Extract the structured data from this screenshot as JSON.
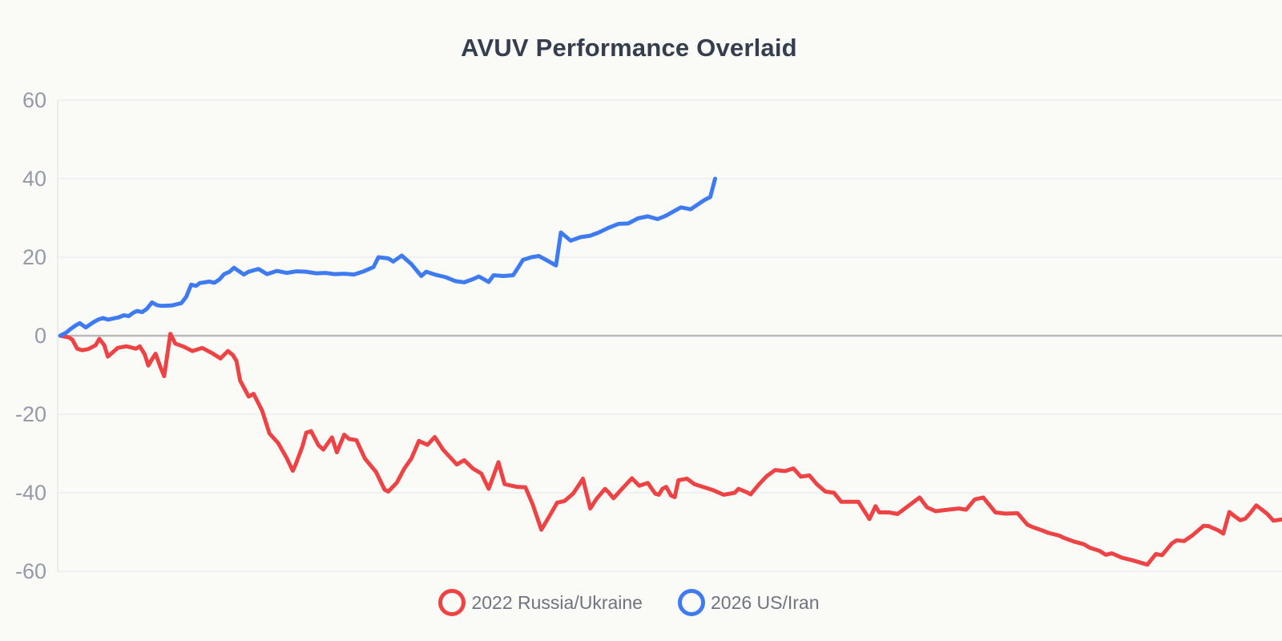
{
  "chart_data": {
    "type": "line",
    "title": "AVUV Performance Overlaid",
    "xlabel": "",
    "ylabel": "",
    "ylim": [
      -60,
      60
    ],
    "y_ticks": [
      60,
      40,
      20,
      0,
      -20,
      -40,
      -60
    ],
    "x_axis_labels": [],
    "x_encoding": "percent of plot width 0-100 (no x-axis tick labels shown)",
    "grid": "horizontal",
    "legend_position": "bottom",
    "colors": {
      "background": "#fafaf7",
      "grid_line": "#ededf1",
      "zero_line": "#b9b9bb",
      "axis_line": "#e7e7ec",
      "tick_text": "#949aa8",
      "title_text": "#343e4e",
      "legend_text": "#6f7480"
    },
    "series": [
      {
        "id": "2022-russia-ukraine",
        "name": "2022 Russia/Ukraine",
        "color": "#ee4345",
        "points": [
          [
            0.2,
            0
          ],
          [
            0.9,
            -0.4
          ],
          [
            1.2,
            -1.0
          ],
          [
            1.6,
            -3.3
          ],
          [
            2.0,
            -3.7
          ],
          [
            2.5,
            -3.4
          ],
          [
            3.1,
            -2.4
          ],
          [
            3.4,
            -0.8
          ],
          [
            3.8,
            -2.4
          ],
          [
            4.1,
            -5.3
          ],
          [
            4.5,
            -4.2
          ],
          [
            4.9,
            -3.1
          ],
          [
            5.6,
            -2.7
          ],
          [
            6.4,
            -3.3
          ],
          [
            6.7,
            -2.7
          ],
          [
            7.1,
            -4.7
          ],
          [
            7.4,
            -7.6
          ],
          [
            7.7,
            -6.0
          ],
          [
            8.0,
            -4.6
          ],
          [
            8.4,
            -8.1
          ],
          [
            8.7,
            -10.3
          ],
          [
            9.2,
            0.5
          ],
          [
            9.6,
            -2.0
          ],
          [
            10.3,
            -2.8
          ],
          [
            11.0,
            -3.9
          ],
          [
            11.8,
            -3.1
          ],
          [
            12.6,
            -4.4
          ],
          [
            13.3,
            -5.8
          ],
          [
            13.9,
            -3.9
          ],
          [
            14.3,
            -4.9
          ],
          [
            14.6,
            -6.4
          ],
          [
            14.9,
            -11.4
          ],
          [
            15.6,
            -15.5
          ],
          [
            16.0,
            -14.8
          ],
          [
            16.7,
            -19.1
          ],
          [
            17.3,
            -24.9
          ],
          [
            18.0,
            -27.3
          ],
          [
            18.7,
            -31.1
          ],
          [
            19.2,
            -34.4
          ],
          [
            19.4,
            -33.1
          ],
          [
            20.0,
            -28.1
          ],
          [
            20.3,
            -24.7
          ],
          [
            20.7,
            -24.3
          ],
          [
            21.3,
            -27.9
          ],
          [
            21.7,
            -29.0
          ],
          [
            22.4,
            -25.9
          ],
          [
            22.8,
            -29.7
          ],
          [
            23.4,
            -25.2
          ],
          [
            23.8,
            -26.3
          ],
          [
            24.4,
            -26.6
          ],
          [
            25.1,
            -31.3
          ],
          [
            26.0,
            -34.7
          ],
          [
            26.7,
            -39.2
          ],
          [
            27.0,
            -39.7
          ],
          [
            27.7,
            -37.4
          ],
          [
            28.3,
            -33.9
          ],
          [
            28.9,
            -31.2
          ],
          [
            29.5,
            -26.8
          ],
          [
            30.2,
            -27.8
          ],
          [
            30.8,
            -25.8
          ],
          [
            31.5,
            -29.1
          ],
          [
            32.6,
            -32.8
          ],
          [
            33.2,
            -31.7
          ],
          [
            33.9,
            -33.8
          ],
          [
            34.6,
            -35.1
          ],
          [
            35.2,
            -39.0
          ],
          [
            36.0,
            -32.2
          ],
          [
            36.5,
            -37.8
          ],
          [
            37.5,
            -38.5
          ],
          [
            38.2,
            -38.6
          ],
          [
            38.8,
            -43.0
          ],
          [
            39.5,
            -49.4
          ],
          [
            40.1,
            -46.3
          ],
          [
            40.8,
            -42.5
          ],
          [
            41.4,
            -42.1
          ],
          [
            42.1,
            -40.2
          ],
          [
            42.7,
            -37.4
          ],
          [
            42.9,
            -36.4
          ],
          [
            43.5,
            -44.0
          ],
          [
            44.0,
            -41.6
          ],
          [
            44.7,
            -39.0
          ],
          [
            45.0,
            -39.9
          ],
          [
            45.4,
            -41.4
          ],
          [
            46.0,
            -39.3
          ],
          [
            46.9,
            -36.3
          ],
          [
            47.5,
            -38.2
          ],
          [
            48.2,
            -37.5
          ],
          [
            48.8,
            -40.2
          ],
          [
            49.1,
            -40.5
          ],
          [
            49.4,
            -39.0
          ],
          [
            49.7,
            -38.5
          ],
          [
            50.1,
            -40.7
          ],
          [
            50.4,
            -41.1
          ],
          [
            50.7,
            -36.8
          ],
          [
            51.4,
            -36.4
          ],
          [
            52.0,
            -37.8
          ],
          [
            52.7,
            -38.5
          ],
          [
            53.5,
            -39.3
          ],
          [
            54.4,
            -40.5
          ],
          [
            55.3,
            -40.0
          ],
          [
            55.6,
            -39.0
          ],
          [
            56.3,
            -39.9
          ],
          [
            56.6,
            -40.4
          ],
          [
            57.3,
            -37.8
          ],
          [
            57.9,
            -35.8
          ],
          [
            58.6,
            -34.2
          ],
          [
            59.4,
            -34.5
          ],
          [
            60.1,
            -33.8
          ],
          [
            60.7,
            -35.9
          ],
          [
            61.4,
            -35.6
          ],
          [
            62.0,
            -37.8
          ],
          [
            62.7,
            -39.7
          ],
          [
            63.4,
            -40.0
          ],
          [
            64.0,
            -42.3
          ],
          [
            65.4,
            -42.3
          ],
          [
            66.3,
            -46.7
          ],
          [
            66.8,
            -43.4
          ],
          [
            67.1,
            -45.0
          ],
          [
            67.9,
            -45.0
          ],
          [
            68.6,
            -45.4
          ],
          [
            69.2,
            -44.0
          ],
          [
            70.4,
            -41.2
          ],
          [
            71.0,
            -43.7
          ],
          [
            71.7,
            -44.7
          ],
          [
            72.7,
            -44.3
          ],
          [
            73.6,
            -44.0
          ],
          [
            74.2,
            -44.3
          ],
          [
            74.9,
            -41.7
          ],
          [
            75.6,
            -41.2
          ],
          [
            76.6,
            -45.0
          ],
          [
            77.4,
            -45.3
          ],
          [
            78.4,
            -45.2
          ],
          [
            79.2,
            -48.1
          ],
          [
            79.6,
            -48.7
          ],
          [
            80.5,
            -49.7
          ],
          [
            80.9,
            -50.2
          ],
          [
            81.8,
            -50.9
          ],
          [
            82.2,
            -51.5
          ],
          [
            83.0,
            -52.4
          ],
          [
            83.8,
            -53.1
          ],
          [
            84.3,
            -54.0
          ],
          [
            85.1,
            -54.8
          ],
          [
            85.6,
            -55.8
          ],
          [
            86.1,
            -55.4
          ],
          [
            86.9,
            -56.5
          ],
          [
            87.8,
            -57.2
          ],
          [
            89.0,
            -58.3
          ],
          [
            89.7,
            -55.6
          ],
          [
            90.2,
            -55.9
          ],
          [
            91.0,
            -52.9
          ],
          [
            91.4,
            -52.1
          ],
          [
            92.0,
            -52.3
          ],
          [
            92.7,
            -50.8
          ],
          [
            93.3,
            -49.2
          ],
          [
            93.6,
            -48.4
          ],
          [
            94.0,
            -48.5
          ],
          [
            94.8,
            -49.6
          ],
          [
            95.2,
            -50.4
          ],
          [
            95.7,
            -44.9
          ],
          [
            96.1,
            -45.9
          ],
          [
            96.6,
            -47.0
          ],
          [
            97.0,
            -46.6
          ],
          [
            97.4,
            -45.2
          ],
          [
            97.9,
            -43.2
          ],
          [
            98.4,
            -44.4
          ],
          [
            98.8,
            -45.4
          ],
          [
            99.3,
            -47.1
          ],
          [
            100,
            -46.8
          ]
        ]
      },
      {
        "id": "2026-us-iran",
        "name": "2026 US/Iran",
        "color": "#3e7bf1",
        "points": [
          [
            0.2,
            0
          ],
          [
            0.7,
            0.8
          ],
          [
            1.0,
            1.6
          ],
          [
            1.5,
            2.7
          ],
          [
            1.8,
            3.2
          ],
          [
            2.3,
            2.1
          ],
          [
            2.9,
            3.4
          ],
          [
            3.3,
            4.1
          ],
          [
            3.7,
            4.5
          ],
          [
            4.1,
            4.1
          ],
          [
            5.0,
            4.7
          ],
          [
            5.4,
            5.2
          ],
          [
            5.8,
            5.0
          ],
          [
            6.2,
            5.9
          ],
          [
            6.5,
            6.3
          ],
          [
            6.9,
            6.0
          ],
          [
            7.3,
            6.9
          ],
          [
            7.7,
            8.5
          ],
          [
            8.1,
            7.8
          ],
          [
            8.5,
            7.6
          ],
          [
            9.3,
            7.7
          ],
          [
            10.1,
            8.3
          ],
          [
            10.5,
            9.9
          ],
          [
            10.9,
            13.0
          ],
          [
            11.3,
            12.7
          ],
          [
            11.6,
            13.4
          ],
          [
            12.4,
            13.8
          ],
          [
            12.8,
            13.5
          ],
          [
            13.2,
            14.3
          ],
          [
            13.6,
            15.7
          ],
          [
            14.0,
            16.2
          ],
          [
            14.4,
            17.3
          ],
          [
            15.2,
            15.6
          ],
          [
            15.6,
            16.3
          ],
          [
            16.4,
            17.0
          ],
          [
            17.1,
            15.7
          ],
          [
            17.9,
            16.5
          ],
          [
            18.7,
            16.0
          ],
          [
            19.5,
            16.4
          ],
          [
            20.3,
            16.3
          ],
          [
            21.1,
            15.9
          ],
          [
            21.9,
            16.0
          ],
          [
            22.6,
            15.7
          ],
          [
            23.4,
            15.8
          ],
          [
            24.2,
            15.6
          ],
          [
            25.0,
            16.4
          ],
          [
            25.8,
            17.5
          ],
          [
            26.2,
            20.0
          ],
          [
            27.0,
            19.7
          ],
          [
            27.4,
            18.9
          ],
          [
            28.1,
            20.4
          ],
          [
            28.9,
            18.2
          ],
          [
            29.7,
            15.2
          ],
          [
            30.1,
            16.3
          ],
          [
            30.9,
            15.5
          ],
          [
            31.7,
            14.9
          ],
          [
            32.5,
            13.9
          ],
          [
            33.2,
            13.6
          ],
          [
            34.0,
            14.5
          ],
          [
            34.4,
            15.1
          ],
          [
            35.2,
            13.7
          ],
          [
            35.6,
            15.4
          ],
          [
            36.4,
            15.2
          ],
          [
            37.2,
            15.4
          ],
          [
            37.6,
            17.3
          ],
          [
            38.0,
            19.3
          ],
          [
            38.7,
            20.0
          ],
          [
            39.3,
            20.3
          ],
          [
            39.9,
            19.3
          ],
          [
            40.7,
            17.9
          ],
          [
            41.1,
            26.3
          ],
          [
            41.9,
            24.2
          ],
          [
            42.7,
            25.1
          ],
          [
            43.5,
            25.5
          ],
          [
            44.2,
            26.3
          ],
          [
            45.0,
            27.5
          ],
          [
            45.8,
            28.5
          ],
          [
            46.6,
            28.6
          ],
          [
            47.4,
            29.9
          ],
          [
            48.2,
            30.4
          ],
          [
            49.0,
            29.7
          ],
          [
            49.7,
            30.6
          ],
          [
            50.5,
            32.0
          ],
          [
            50.9,
            32.7
          ],
          [
            51.7,
            32.2
          ],
          [
            52.5,
            33.9
          ],
          [
            52.9,
            34.7
          ],
          [
            53.3,
            35.3
          ],
          [
            53.7,
            40.0
          ]
        ]
      }
    ]
  }
}
